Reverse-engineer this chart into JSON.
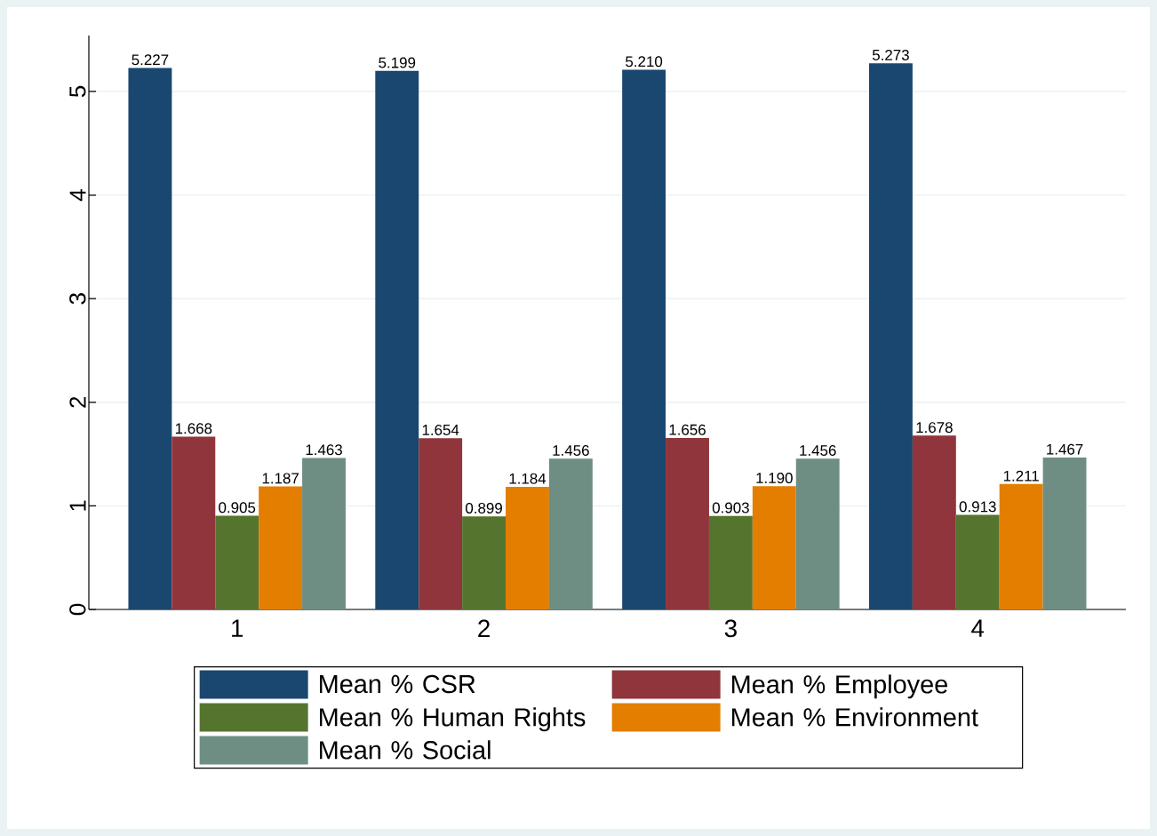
{
  "chart_data": {
    "type": "bar",
    "categories": [
      "1",
      "2",
      "3",
      "4"
    ],
    "series": [
      {
        "name": "Mean % CSR",
        "color": "#1a476f",
        "values": [
          5.227,
          5.199,
          5.21,
          5.273
        ],
        "value_labels": [
          "5.227",
          "5.199",
          "5.210",
          "5.273"
        ]
      },
      {
        "name": "Mean % Employee",
        "color": "#90353b",
        "values": [
          1.668,
          1.654,
          1.656,
          1.678
        ],
        "value_labels": [
          "1.668",
          "1.654",
          "1.656",
          "1.678"
        ]
      },
      {
        "name": "Mean % Human Rights",
        "color": "#55752f",
        "values": [
          0.905,
          0.899,
          0.903,
          0.913
        ],
        "value_labels": [
          "0.905",
          "0.899",
          "0.903",
          "0.913"
        ]
      },
      {
        "name": "Mean % Environment",
        "color": "#e37e00",
        "values": [
          1.187,
          1.184,
          1.19,
          1.211
        ],
        "value_labels": [
          "1.187",
          "1.184",
          "1.190",
          "1.211"
        ]
      },
      {
        "name": "Mean % Social",
        "color": "#6e8e84",
        "values": [
          1.463,
          1.456,
          1.456,
          1.467
        ],
        "value_labels": [
          "1.463",
          "1.456",
          "1.456",
          "1.467"
        ]
      }
    ],
    "ylim": [
      0,
      5.54
    ],
    "yticks": [
      0,
      1,
      2,
      3,
      4,
      5
    ],
    "grid": "y",
    "legend": "bottom"
  }
}
